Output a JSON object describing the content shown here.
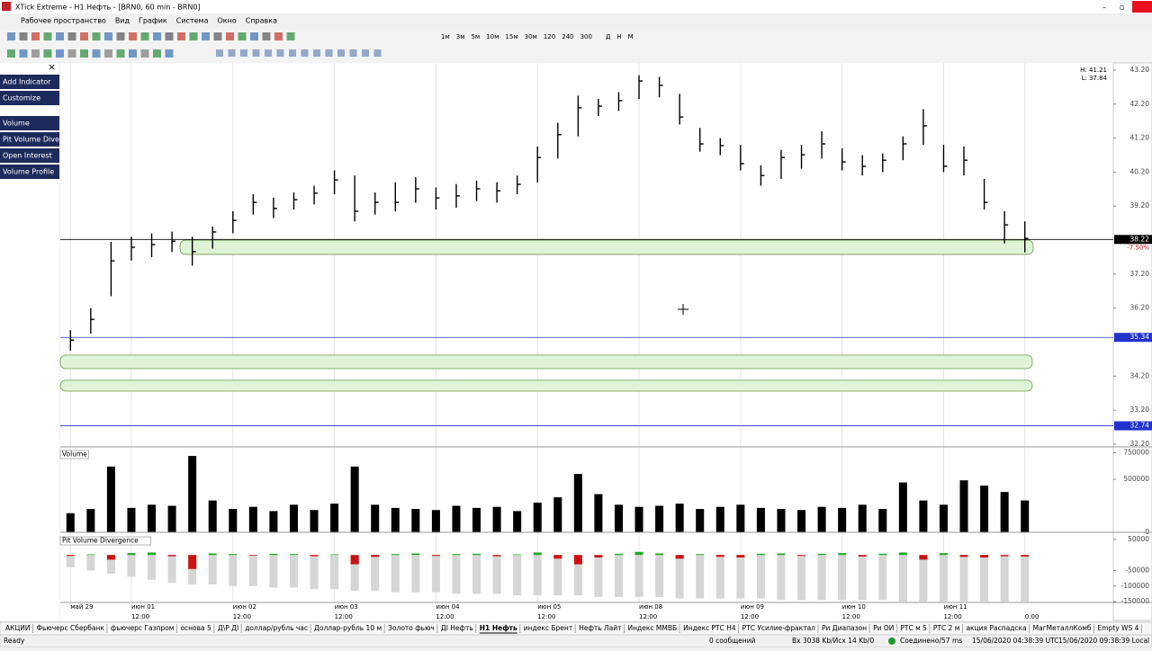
{
  "window": {
    "title": "XTick Extreme - H1 Нефть - [BRN0, 60 min - BRN0]"
  },
  "menu": [
    "Рабочее пространство",
    "Вид",
    "График",
    "Система",
    "Окно",
    "Справка"
  ],
  "timeframes": [
    "1м",
    "3м",
    "5м",
    "10м",
    "15м",
    "30м",
    "120",
    "240",
    "300",
    "Д",
    "Н",
    "М"
  ],
  "sidebar": [
    "Add Indicator",
    "Customize",
    "Volume",
    "Pit Volume Dive",
    "Open Interest",
    "Volume Profile"
  ],
  "chart_data": [
    {
      "type": "ohlc",
      "info": [
        "H: 41.21",
        "L: 37.84"
      ],
      "categories": [
        "май 29",
        null,
        null,
        "июн 01",
        null,
        null,
        null,
        null,
        "июн 02",
        null,
        null,
        null,
        null,
        "июн 03",
        null,
        null,
        null,
        null,
        "июн 04",
        null,
        null,
        null,
        null,
        "июн 05",
        null,
        null,
        null,
        null,
        "июн 08",
        null,
        null,
        null,
        null,
        "июн 09",
        null,
        null,
        null,
        null,
        "июн 10",
        null,
        null,
        null,
        null,
        "июн 11",
        null,
        null,
        null,
        null
      ],
      "times": [
        null,
        null,
        null,
        "12:00",
        null,
        null,
        null,
        null,
        "12:00",
        null,
        null,
        null,
        null,
        "12:00",
        null,
        null,
        null,
        null,
        "12:00",
        null,
        null,
        null,
        null,
        "12:00",
        null,
        null,
        null,
        null,
        "12:00",
        null,
        null,
        null,
        null,
        "12:00",
        null,
        null,
        null,
        null,
        "12:00",
        null,
        null,
        null,
        null,
        "12:00",
        null,
        null,
        null,
        "0:00"
      ],
      "high": [
        35.55,
        36.2,
        38.15,
        38.3,
        38.4,
        38.45,
        38.3,
        38.6,
        39.05,
        39.55,
        39.45,
        39.6,
        39.8,
        40.25,
        40.1,
        39.6,
        39.9,
        40.05,
        39.75,
        39.85,
        39.95,
        39.9,
        40.1,
        40.95,
        41.65,
        42.45,
        42.35,
        42.55,
        43.05,
        43.0,
        42.5,
        41.5,
        41.2,
        41.0,
        40.4,
        40.85,
        41.0,
        41.4,
        40.9,
        40.7,
        40.75,
        41.25,
        42.05,
        41.0,
        40.95,
        40.0,
        39.05,
        38.75
      ],
      "low": [
        34.95,
        35.45,
        36.55,
        37.6,
        37.7,
        37.85,
        37.45,
        37.95,
        38.4,
        38.95,
        38.85,
        39.1,
        39.25,
        39.55,
        38.75,
        38.95,
        39.05,
        39.3,
        39.1,
        39.15,
        39.35,
        39.3,
        39.55,
        39.9,
        40.6,
        41.25,
        41.85,
        42.0,
        42.35,
        42.4,
        41.6,
        40.8,
        40.7,
        40.25,
        39.8,
        40.0,
        40.3,
        40.6,
        40.25,
        40.1,
        40.2,
        40.55,
        41.0,
        40.2,
        40.1,
        39.1,
        38.1,
        37.84
      ],
      "close": [
        35.26,
        35.87,
        37.59,
        37.99,
        38.07,
        38.17,
        37.86,
        38.44,
        38.78,
        39.31,
        39.13,
        39.39,
        39.58,
        39.97,
        39.05,
        39.31,
        39.31,
        39.71,
        39.44,
        39.5,
        39.71,
        39.65,
        39.84,
        40.63,
        41.3,
        42.09,
        42.14,
        42.3,
        42.88,
        42.75,
        41.82,
        41.03,
        40.98,
        40.45,
        40.1,
        40.63,
        40.71,
        41.03,
        40.5,
        40.37,
        40.55,
        41.03,
        41.56,
        40.37,
        40.55,
        39.31,
        38.65,
        38.25
      ],
      "color": "#000000",
      "ylim": [
        32.12,
        43.41
      ],
      "yticks": [
        {
          "value": 43.2,
          "label": "43.20"
        },
        {
          "value": 42.2,
          "label": "42.20"
        },
        {
          "value": 41.2,
          "label": "41.20"
        },
        {
          "value": 40.2,
          "label": "40.20"
        },
        {
          "value": 39.2,
          "label": "39.20"
        },
        {
          "value": 37.2,
          "label": "37.20"
        },
        {
          "value": 36.2,
          "label": "36.20"
        },
        {
          "value": 34.2,
          "label": "34.20"
        },
        {
          "value": 33.2,
          "label": "33.20"
        },
        {
          "value": 32.2,
          "label": "32.20"
        }
      ],
      "levels": [
        {
          "value": 38.22,
          "color": "#000000"
        },
        {
          "value": 35.34,
          "color": "#2233cc"
        },
        {
          "value": 32.74,
          "color": "#2233cc"
        }
      ],
      "change_label": "-7.50%",
      "zones": [
        [
          37.78,
          38.2
        ],
        [
          34.42,
          34.82
        ],
        [
          33.76,
          34.08
        ]
      ],
      "grid": false
    },
    {
      "type": "bar",
      "title": "Volume",
      "values": [
        180000,
        220000,
        620000,
        230000,
        260000,
        250000,
        720000,
        300000,
        220000,
        240000,
        200000,
        260000,
        210000,
        270000,
        620000,
        260000,
        230000,
        220000,
        210000,
        250000,
        230000,
        240000,
        200000,
        280000,
        330000,
        550000,
        360000,
        260000,
        240000,
        250000,
        270000,
        220000,
        240000,
        260000,
        230000,
        220000,
        210000,
        240000,
        230000,
        260000,
        220000,
        470000,
        300000,
        260000,
        490000,
        440000,
        380000,
        300000
      ],
      "color": "#000000",
      "ylim": [
        0,
        780000
      ],
      "yticks": [
        750000,
        500000,
        0
      ]
    },
    {
      "type": "bar",
      "title": "Pit Volume Divergence",
      "series": [
        {
          "color": "#d6d6d6",
          "values": [
            -40000,
            -50000,
            -60000,
            -70000,
            -80000,
            -90000,
            -95000,
            -95000,
            -100000,
            -100000,
            -105000,
            -105000,
            -110000,
            -110000,
            -115000,
            -115000,
            -120000,
            -120000,
            -120000,
            -125000,
            -125000,
            -125000,
            -130000,
            -130000,
            -130000,
            -130000,
            -135000,
            -135000,
            -135000,
            -135000,
            -140000,
            -140000,
            -140000,
            -140000,
            -140000,
            -145000,
            -145000,
            -145000,
            -145000,
            -145000,
            -145000,
            -150000,
            -150000,
            -150000,
            -150000,
            -150000,
            -150000,
            -150000
          ]
        },
        {
          "color": "#22aa22",
          "negative_color": "#cc1111",
          "values": [
            -3000,
            2000,
            -15000,
            6000,
            8000,
            -4000,
            -45000,
            5000,
            3000,
            -2000,
            4000,
            3000,
            -4000,
            2000,
            -30000,
            -6000,
            3000,
            5000,
            -3000,
            3000,
            4000,
            -4000,
            2000,
            8000,
            -12000,
            -30000,
            -8000,
            4000,
            10000,
            5000,
            -12000,
            3000,
            -6000,
            -8000,
            4000,
            5000,
            -3000,
            4000,
            6000,
            -5000,
            4000,
            8000,
            -15000,
            6000,
            -6000,
            -8000,
            -4000,
            -5000
          ]
        }
      ],
      "ylim": [
        -152800,
        61400
      ],
      "yticks": [
        50000,
        -50000,
        -100000,
        -150000
      ]
    }
  ],
  "tabs": [
    {
      "label": "АКЦИИ"
    },
    {
      "label": "Фьючерс Сбербанк"
    },
    {
      "label": "фьючерс Газпром"
    },
    {
      "label": "основа 5"
    },
    {
      "label": "Д\\Р ДI"
    },
    {
      "label": "доллар/рубль час"
    },
    {
      "label": "Доллар-рубль 10 м"
    },
    {
      "label": "Золото фьюч"
    },
    {
      "label": "ДI Нефть"
    },
    {
      "label": "H1 Нефть",
      "active": true
    },
    {
      "label": "индекс Брент"
    },
    {
      "label": "Нефть Лайт"
    },
    {
      "label": "Индекс ММВБ"
    },
    {
      "label": "Индекс РТС Н4"
    },
    {
      "label": "РТС Усилие-фрактал"
    },
    {
      "label": "Ри Диапазон"
    },
    {
      "label": "Ри ОИ"
    },
    {
      "label": "РТС м 5"
    },
    {
      "label": "РТС 2 м"
    },
    {
      "label": "акция Распадска"
    },
    {
      "label": "МагМеталлКомб"
    },
    {
      "label": "Empty WS 4"
    }
  ],
  "status": [
    "Ready",
    "0 сообщений",
    "Вх 3038 Kb/Исх 14 Kb/0",
    "Соединено/57 ms",
    "15/06/2020 04:38:39 UTC",
    "15/06/2020 09:38:39 Local"
  ]
}
